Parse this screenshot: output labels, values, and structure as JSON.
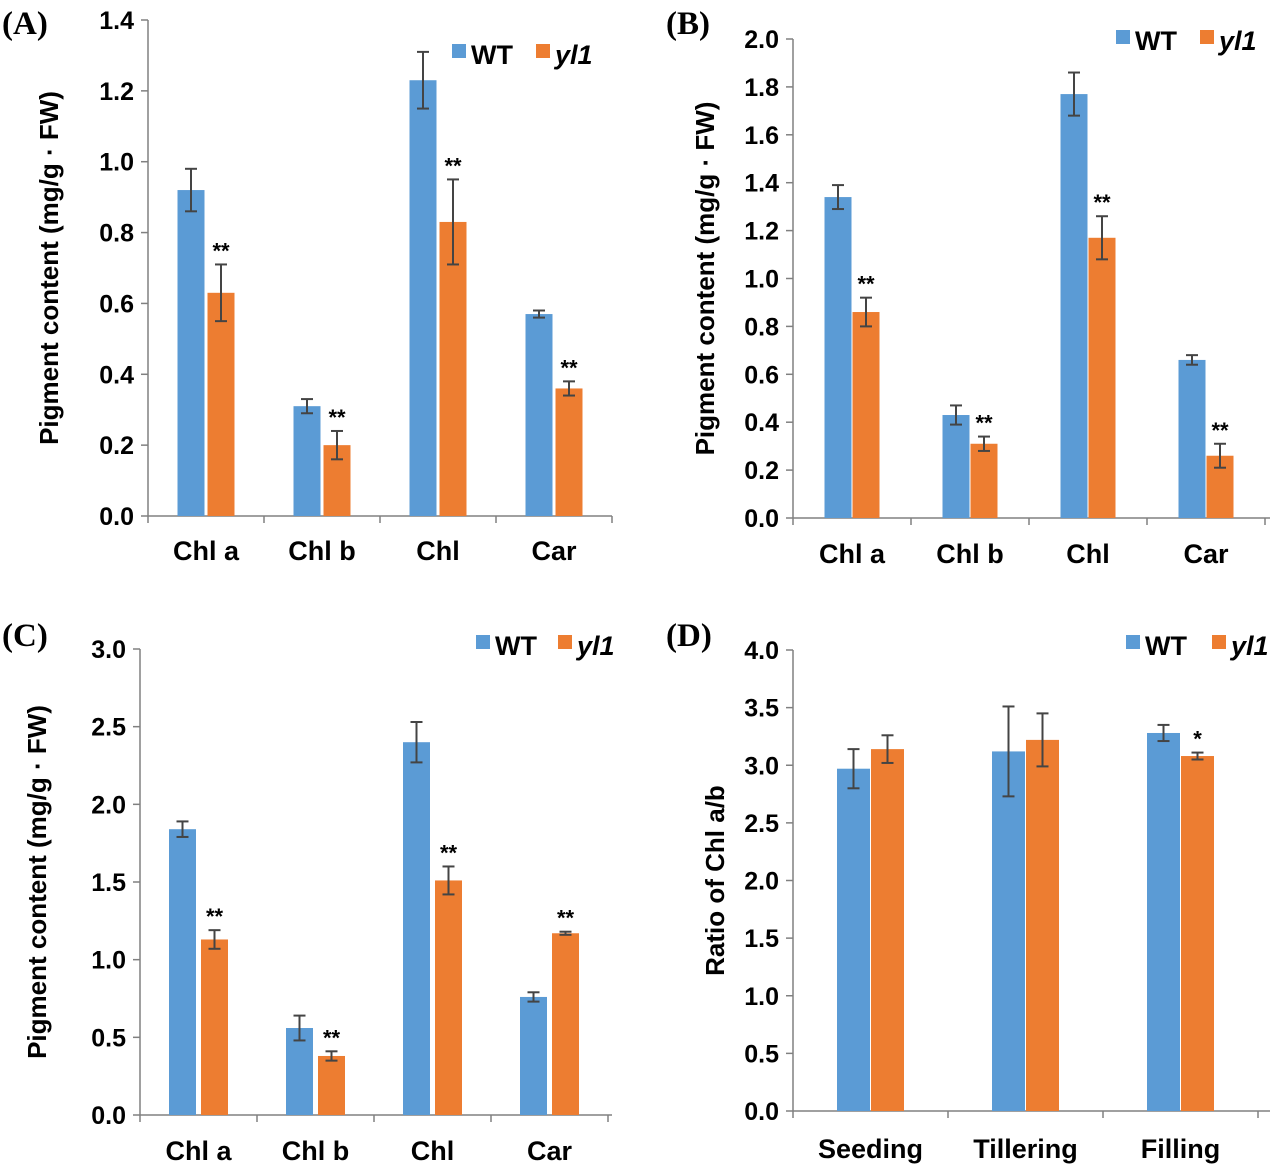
{
  "colors": {
    "wt": "#5b9bd5",
    "yl1": "#ed7d31",
    "axis": "#808080",
    "error": "#444444"
  },
  "chart_data": [
    {
      "panel": "(A)",
      "type": "bar",
      "ylabel": "Pigment content (mg/g · FW)",
      "ylim": [
        0,
        1.4
      ],
      "yticks": [
        "0.0",
        "0.2",
        "0.4",
        "0.6",
        "0.8",
        "1.0",
        "1.2",
        "1.4"
      ],
      "categories": [
        "Chl a",
        "Chl b",
        "Chl",
        "Car"
      ],
      "legend": [
        "WT",
        "yl1"
      ],
      "series": [
        {
          "name": "WT",
          "values": [
            0.92,
            0.31,
            1.23,
            0.57
          ],
          "errors": [
            0.06,
            0.02,
            0.08,
            0.01
          ],
          "sig": [
            "",
            "",
            "",
            ""
          ]
        },
        {
          "name": "yl1",
          "values": [
            0.63,
            0.2,
            0.83,
            0.36
          ],
          "errors": [
            0.08,
            0.04,
            0.12,
            0.02
          ],
          "sig": [
            "**",
            "**",
            "**",
            "**"
          ]
        }
      ]
    },
    {
      "panel": "(B)",
      "type": "bar",
      "ylabel": "Pigment content (mg/g · FW)",
      "ylim": [
        0,
        2.0
      ],
      "yticks": [
        "0.0",
        "0.2",
        "0.4",
        "0.6",
        "0.8",
        "1.0",
        "1.2",
        "1.4",
        "1.6",
        "1.8",
        "2.0"
      ],
      "categories": [
        "Chl a",
        "Chl b",
        "Chl",
        "Car"
      ],
      "legend": [
        "WT",
        "yl1"
      ],
      "series": [
        {
          "name": "WT",
          "values": [
            1.34,
            0.43,
            1.77,
            0.66
          ],
          "errors": [
            0.05,
            0.04,
            0.09,
            0.02
          ],
          "sig": [
            "",
            "",
            "",
            ""
          ]
        },
        {
          "name": "yl1",
          "values": [
            0.86,
            0.31,
            1.17,
            0.26
          ],
          "errors": [
            0.06,
            0.03,
            0.09,
            0.05
          ],
          "sig": [
            "**",
            "**",
            "**",
            "**"
          ]
        }
      ]
    },
    {
      "panel": "(C)",
      "type": "bar",
      "ylabel": "Pigment content (mg/g · FW)",
      "ylim": [
        0,
        3.0
      ],
      "yticks": [
        "0.0",
        "0.5",
        "1.0",
        "1.5",
        "2.0",
        "2.5",
        "3.0"
      ],
      "categories": [
        "Chl a",
        "Chl b",
        "Chl",
        "Car"
      ],
      "legend": [
        "WT",
        "yl1"
      ],
      "series": [
        {
          "name": "WT",
          "values": [
            1.84,
            0.56,
            2.4,
            0.76
          ],
          "errors": [
            0.05,
            0.08,
            0.13,
            0.03
          ],
          "sig": [
            "",
            "",
            "",
            ""
          ]
        },
        {
          "name": "yl1",
          "values": [
            1.13,
            0.38,
            1.51,
            1.17
          ],
          "errors": [
            0.06,
            0.03,
            0.09,
            0.01
          ],
          "sig": [
            "**",
            "**",
            "**",
            "**"
          ]
        }
      ]
    },
    {
      "panel": "(D)",
      "type": "bar",
      "ylabel": "Ratio of Chl a/b",
      "ylim": [
        0,
        4.0
      ],
      "yticks": [
        "0.0",
        "0.5",
        "1.0",
        "1.5",
        "2.0",
        "2.5",
        "3.0",
        "3.5",
        "4.0"
      ],
      "categories": [
        "Seeding",
        "Tillering",
        "Filling"
      ],
      "legend": [
        "WT",
        "yl1"
      ],
      "series": [
        {
          "name": "WT",
          "values": [
            2.97,
            3.12,
            3.28
          ],
          "errors": [
            0.17,
            0.39,
            0.07
          ],
          "sig": [
            "",
            "",
            ""
          ]
        },
        {
          "name": "yl1",
          "values": [
            3.14,
            3.22,
            3.08
          ],
          "errors": [
            0.12,
            0.23,
            0.03
          ],
          "sig": [
            "",
            "",
            "*"
          ]
        }
      ]
    }
  ]
}
